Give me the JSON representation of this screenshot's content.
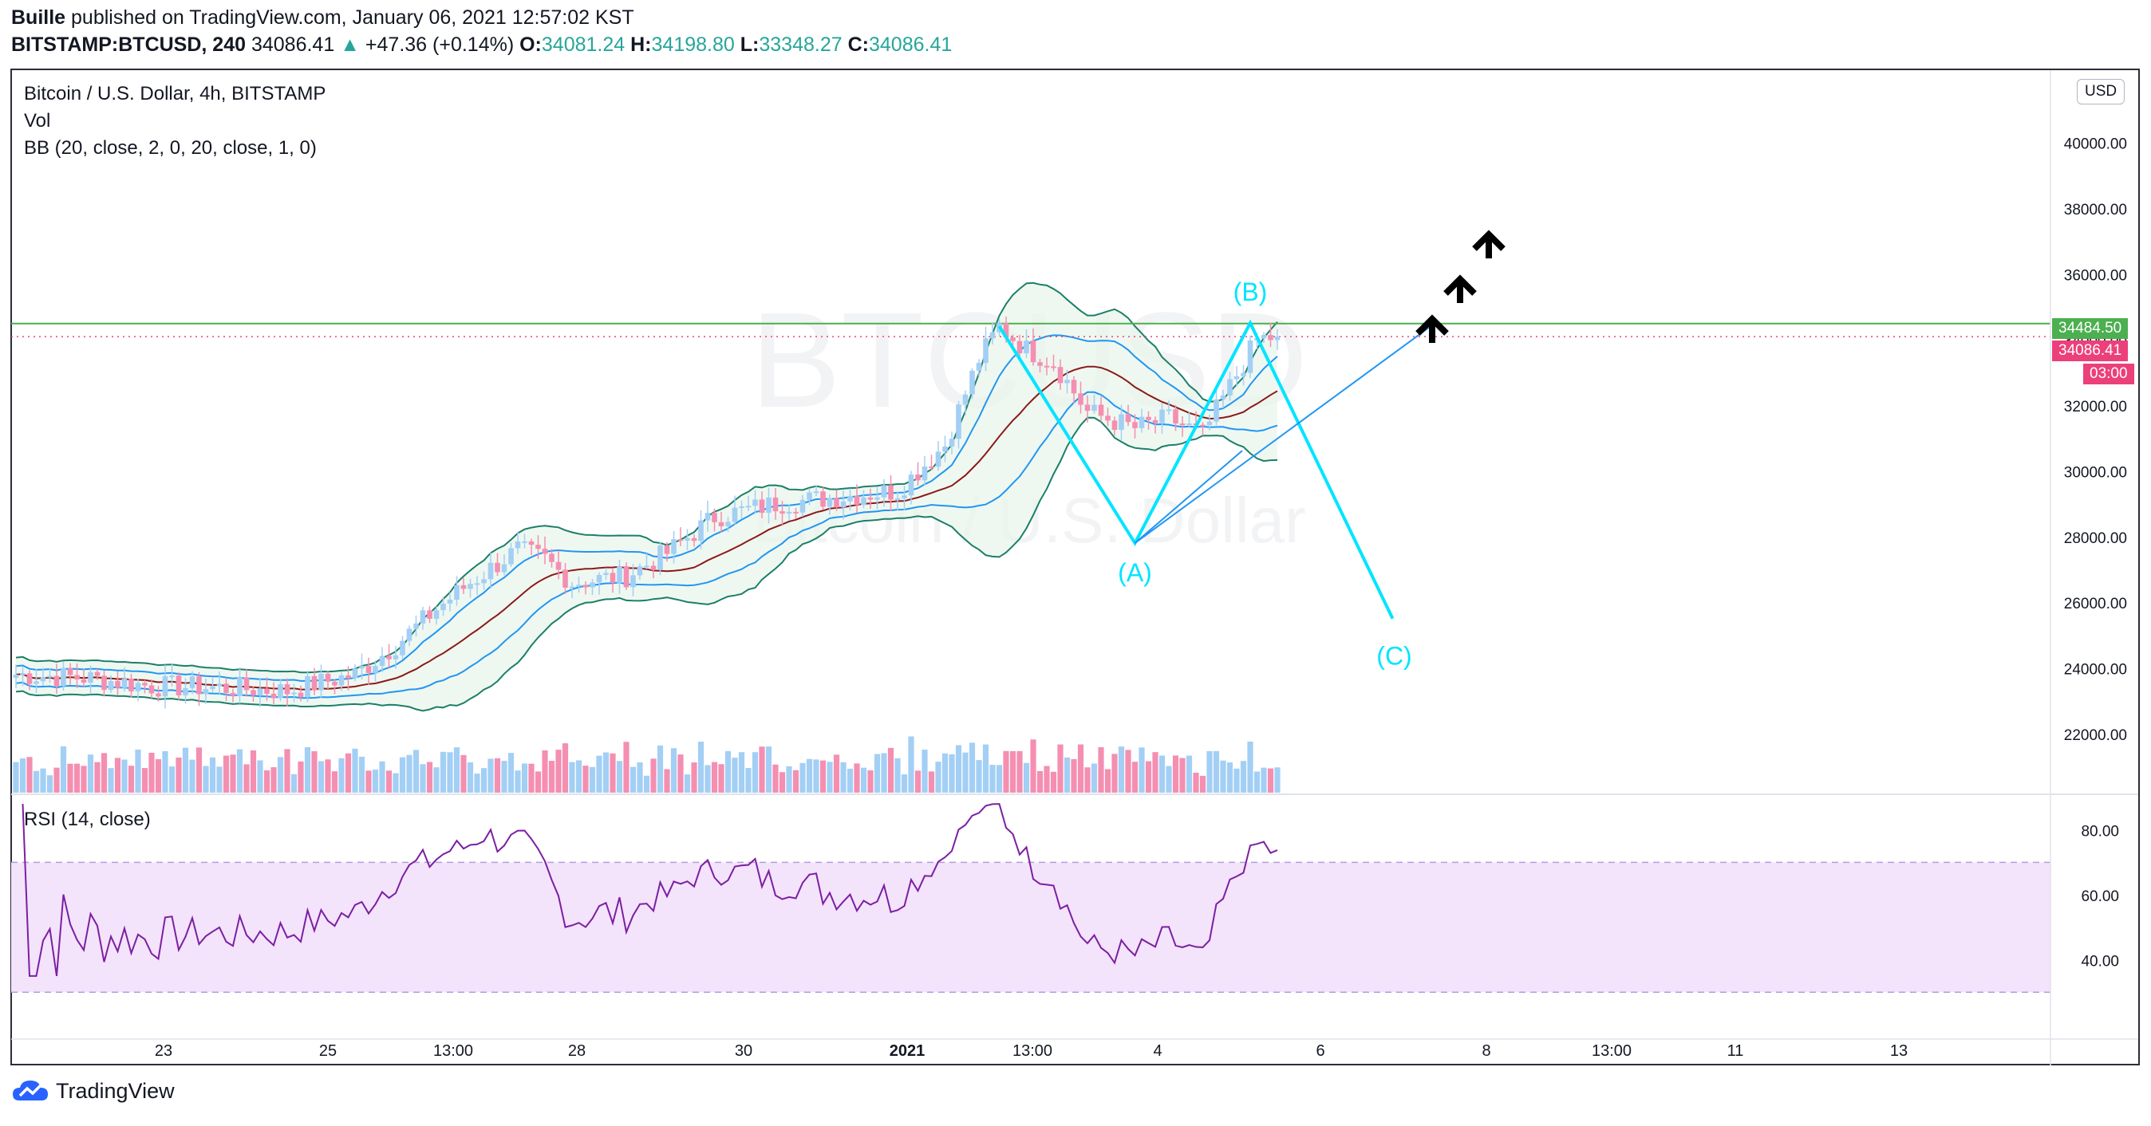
{
  "header": {
    "author": "Buille",
    "published_text": "published on TradingView.com, January 06, 2021 12:57:02 KST",
    "symbol": "BITSTAMP:BTCUSD, 240",
    "last": "34086.41",
    "change_arrow": "▲",
    "change": "+47.36 (+0.14%)",
    "o_label": "O:",
    "o_value": "34081.24",
    "h_label": "H:",
    "h_value": "34198.80",
    "l_label": "L:",
    "l_value": "33348.27",
    "c_label": "C:",
    "c_value": "34086.41"
  },
  "legend": {
    "title": "Bitcoin / U.S. Dollar, 4h, BITSTAMP",
    "vol": "Vol",
    "bb": "BB (20, close, 2, 0, 20, close, 1, 0)",
    "rsi": "RSI (14, close)"
  },
  "watermark": {
    "symbol": "BTCUSD",
    "name": "Bitcoin / U.S. Dollar"
  },
  "currency_button": "USD",
  "price_tags": {
    "hline": "34484.50",
    "last": "34086.41",
    "countdown": "03:00"
  },
  "colors": {
    "up": "#26a69a",
    "up_fill": "#a3cff5",
    "down_fill": "#f48fb1",
    "accent": "#00e5ff",
    "bb_outer": "#1b7f69",
    "bb_mid": "#8b1a1a",
    "bb_inner": "#2196f3",
    "rsi": "#7b1fa2",
    "rsi_band": "#f3e3fb"
  },
  "wave_labels": {
    "a": "(A)",
    "b": "(B)",
    "c": "(C)"
  },
  "footer": {
    "brand": "TradingView",
    "logo_icon": "tradingview-cloud-icon"
  },
  "chart_data": {
    "type": "candlestick",
    "title": "Bitcoin / U.S. Dollar, 4h, BITSTAMP",
    "price_axis": {
      "ticks": [
        22000,
        24000,
        26000,
        28000,
        30000,
        32000,
        34000,
        36000,
        38000,
        40000
      ],
      "range": [
        20200,
        42200
      ]
    },
    "rsi_axis": {
      "ticks": [
        40,
        60,
        80
      ],
      "upper_band": 70,
      "lower_band": 30,
      "range": [
        20,
        90
      ]
    },
    "time_ticks": [
      "23",
      "25",
      "13:00",
      "28",
      "30",
      "2021",
      "13:00",
      "4",
      "6",
      "8",
      "13:00",
      "11",
      "13"
    ],
    "horizontal_line": 34484.5,
    "last_price": 34086.41,
    "close_anchors": [
      [
        0,
        23800
      ],
      [
        10,
        23700
      ],
      [
        20,
        23450
      ],
      [
        30,
        23400
      ],
      [
        40,
        23300
      ],
      [
        50,
        23800
      ],
      [
        56,
        24700
      ],
      [
        62,
        25800
      ],
      [
        67,
        26600
      ],
      [
        74,
        27600
      ],
      [
        78,
        27300
      ],
      [
        82,
        26600
      ],
      [
        90,
        26800
      ],
      [
        96,
        27500
      ],
      [
        103,
        28600
      ],
      [
        112,
        29000
      ],
      [
        121,
        29200
      ],
      [
        130,
        29400
      ],
      [
        137,
        30800
      ],
      [
        142,
        33400
      ],
      [
        145,
        34400
      ],
      [
        149,
        33700
      ],
      [
        153,
        33300
      ],
      [
        158,
        31800
      ],
      [
        165,
        31300
      ],
      [
        170,
        31600
      ],
      [
        175,
        31100
      ],
      [
        178,
        32200
      ],
      [
        183,
        34000
      ],
      [
        186,
        34086
      ]
    ],
    "wave_points": {
      "start": [
        34400,
        145
      ],
      "a": [
        27800,
        165
      ],
      "b": [
        34500,
        182
      ],
      "c": [
        25500,
        203
      ]
    }
  }
}
